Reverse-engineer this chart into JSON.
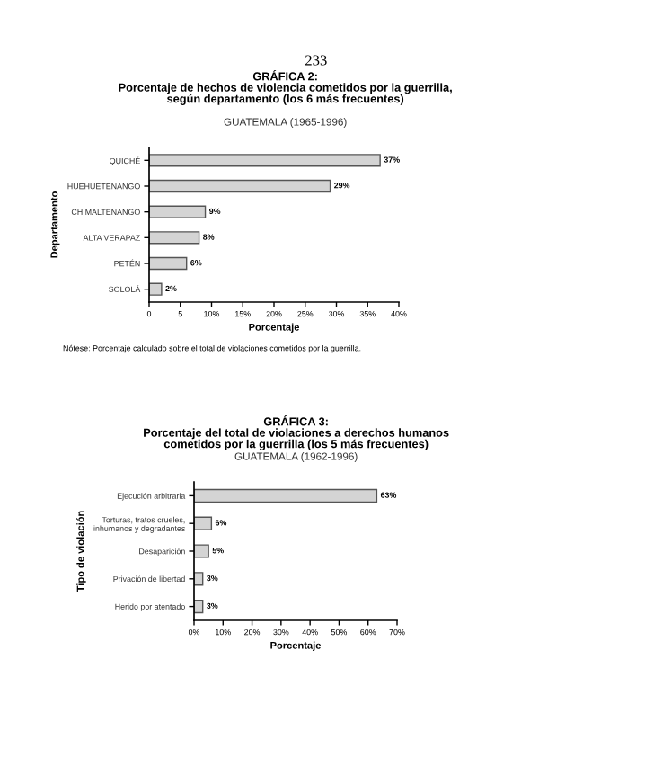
{
  "chart_data": [
    {
      "type": "bar",
      "orientation": "horizontal",
      "title": "GRÁFICA 2:\nPorcentaje de hechos de violencia cometidos por la guerrilla,\nsegún departamento (los 6 más frecuentes)",
      "subtitle": "GUATEMALA (1965-1996)",
      "xlabel": "Porcentaje",
      "ylabel": "Departamento",
      "categories": [
        "QUICHÉ",
        "HUEHUETENANGO",
        "CHIMALTENANGO",
        "ALTA VERAPAZ",
        "PETÉN",
        "SOLOLÁ"
      ],
      "values": [
        37,
        29,
        9,
        8,
        6,
        2
      ],
      "value_labels": [
        "37%",
        "29%",
        "9%",
        "8%",
        "6%",
        "2%"
      ],
      "color": "#d4d4d4",
      "xlim": [
        0,
        40
      ],
      "xticks": [
        0,
        5,
        {
          "value": 10,
          "label": "10%"
        },
        {
          "value": 15,
          "label": "15%"
        },
        {
          "value": 20,
          "label": "20%"
        },
        {
          "value": 25,
          "label": "25%"
        },
        {
          "value": 30,
          "label": "30%"
        },
        {
          "value": 35,
          "label": "35%"
        },
        {
          "value": 40,
          "label": "40%"
        }
      ],
      "annotations": [
        "233",
        "Nótese: Porcentaje calculado sobre el total de violaciones cometidos por la guerrilla."
      ]
    },
    {
      "type": "bar",
      "orientation": "horizontal",
      "title": "GRÁFICA 3:\nPorcentaje del total de violaciones a derechos humanos\ncometidos por la guerrilla (los 5 más frecuentes)",
      "subtitle": "GUATEMALA (1962-1996)",
      "xlabel": "Porcentaje",
      "ylabel": "Tipo de violación",
      "categories": [
        "Ejecución arbitraria",
        "Torturas, tratos crueles,\ninhumanos y degradantes",
        "Desaparición",
        "Privación de libertad",
        "Herido por atentado"
      ],
      "values": [
        63,
        6,
        5,
        3,
        3
      ],
      "value_labels": [
        "63%",
        "6%",
        "5%",
        "3%",
        "3%"
      ],
      "color": "#d4d4d4",
      "xlim": [
        0,
        70
      ],
      "xticks": [
        {
          "value": 0,
          "label": "0%"
        },
        {
          "value": 10,
          "label": "10%"
        },
        {
          "value": 20,
          "label": "20%"
        },
        {
          "value": 30,
          "label": "30%"
        },
        {
          "value": 40,
          "label": "40%"
        },
        {
          "value": 50,
          "label": "50%"
        },
        {
          "value": 60,
          "label": "60%"
        },
        {
          "value": 70,
          "label": "70%"
        }
      ]
    }
  ]
}
